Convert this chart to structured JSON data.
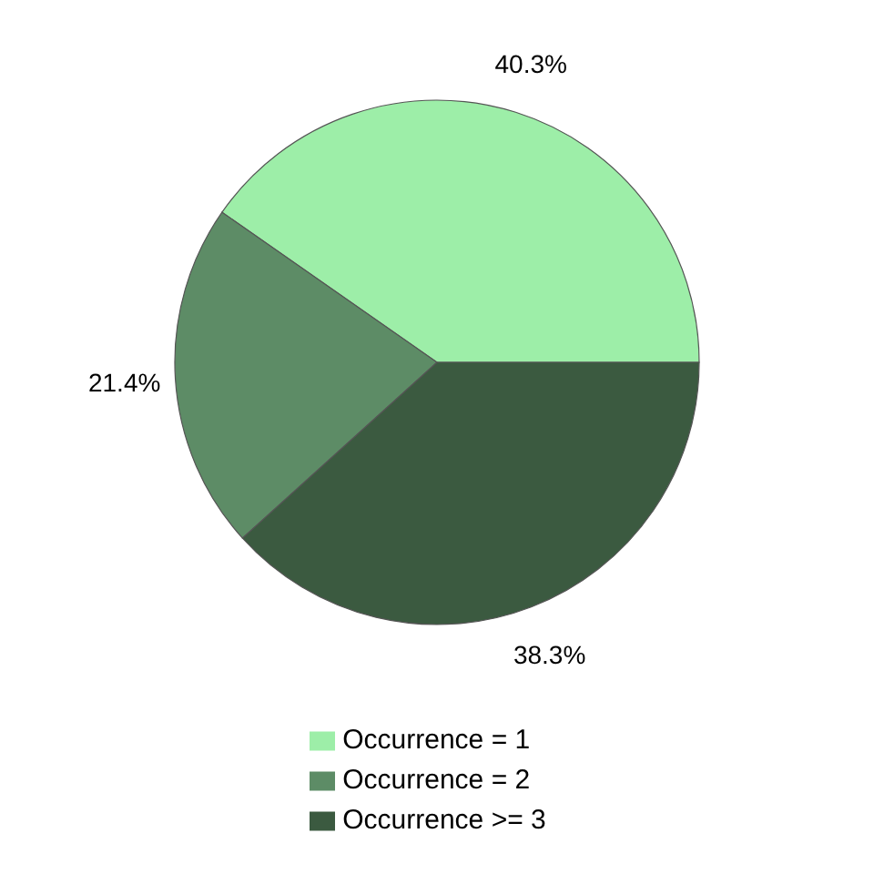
{
  "chart_data": {
    "type": "pie",
    "categories": [
      "Occurrence = 1",
      "Occurrence = 2",
      "Occurrence >= 3"
    ],
    "values": [
      40.3,
      21.4,
      38.3
    ],
    "colors": [
      "#9deea8",
      "#5d8c66",
      "#3b5a40"
    ],
    "value_labels": [
      "40.3%",
      "21.4%",
      "38.3%"
    ],
    "legend": "bottom"
  }
}
